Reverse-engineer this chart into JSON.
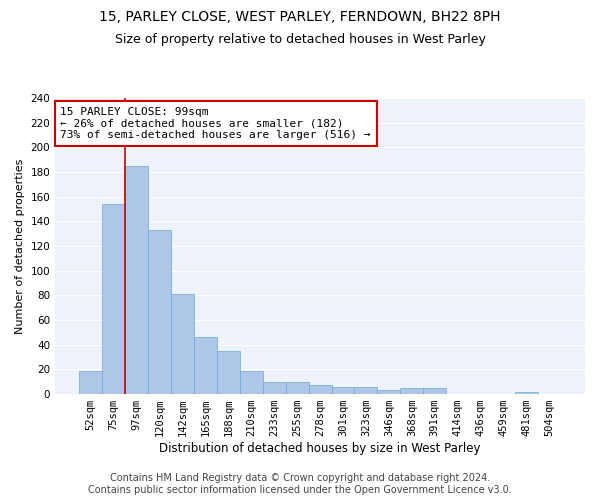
{
  "title1": "15, PARLEY CLOSE, WEST PARLEY, FERNDOWN, BH22 8PH",
  "title2": "Size of property relative to detached houses in West Parley",
  "xlabel": "Distribution of detached houses by size in West Parley",
  "ylabel": "Number of detached properties",
  "categories": [
    "52sqm",
    "75sqm",
    "97sqm",
    "120sqm",
    "142sqm",
    "165sqm",
    "188sqm",
    "210sqm",
    "233sqm",
    "255sqm",
    "278sqm",
    "301sqm",
    "323sqm",
    "346sqm",
    "368sqm",
    "391sqm",
    "414sqm",
    "436sqm",
    "459sqm",
    "481sqm",
    "504sqm"
  ],
  "values": [
    19,
    154,
    185,
    133,
    81,
    46,
    35,
    19,
    10,
    10,
    7,
    6,
    6,
    3,
    5,
    5,
    0,
    0,
    0,
    2,
    0
  ],
  "bar_color": "#aec6e8",
  "bar_edge_color": "#6aaad4",
  "property_line_x": 2,
  "annotation_text": "15 PARLEY CLOSE: 99sqm\n← 26% of detached houses are smaller (182)\n73% of semi-detached houses are larger (516) →",
  "footer1": "Contains HM Land Registry data © Crown copyright and database right 2024.",
  "footer2": "Contains public sector information licensed under the Open Government Licence v3.0.",
  "ylim": [
    0,
    240
  ],
  "yticks": [
    0,
    20,
    40,
    60,
    80,
    100,
    120,
    140,
    160,
    180,
    200,
    220,
    240
  ],
  "bg_color": "#edf2fb",
  "grid_color": "#ffffff",
  "line_color": "#cc0000",
  "box_color": "#cc0000",
  "title1_fontsize": 10,
  "title2_fontsize": 9,
  "xlabel_fontsize": 8.5,
  "ylabel_fontsize": 8,
  "tick_fontsize": 7.5,
  "annotation_fontsize": 8,
  "footer_fontsize": 7
}
